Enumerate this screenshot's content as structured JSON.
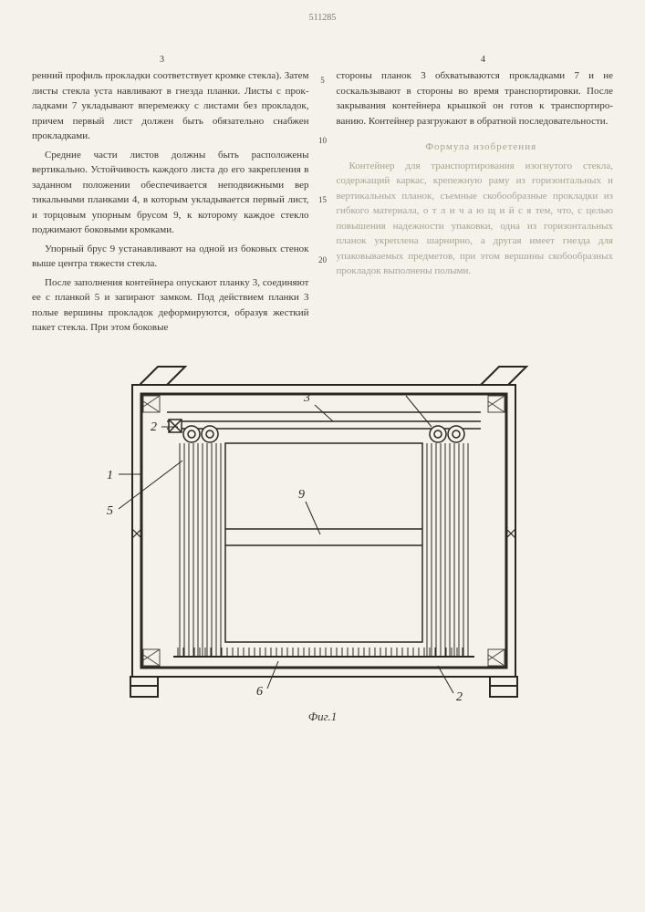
{
  "page_number_top": "511285",
  "col_num_left": "3",
  "col_num_right": "4",
  "line_markers": [
    "5",
    "10",
    "15",
    "20"
  ],
  "left_col": {
    "p1": "ренний профиль прокладки соответствует кромке стекла). Затем листы стекла уста навливают в гнезда планки. Листы с прок­ладками 7 укладывают вперемежку с листа­ми без прокладок, причем первый лист дол­жен быть обязательно снабжен прокладками.",
    "p2": "Средние части листов должны быть рас­положены вертикально. Устойчивость каж­дого листа до его закрепления в заданном положении обеспечивается неподвижными вер тикальными планками 4, в которым укла­дывается первый лист, и торцовым упорным брусом 9, к которому каждое стекло поджи­мают боковыми кромками.",
    "p3": "Упорный брус 9 устанавливают на одной из боковых стенок выше центра тяжести стекла.",
    "p4": "После заполнения контейнера опускают план­ку 3, соединяют ее с планкой 5 и запира­ют замком. Под действием планки 3 полые вершины прокладок деформируются, образуя жесткий пакет стекла. При этом боковые"
  },
  "right_col": {
    "p1": "стороны планок 3 обхватываются прокладка­ми 7 и не соскальзывают в стороны во вре­мя транспортировки. После закрывания кон­тейнера крышкой он готов к транспортиро­ванию. Контейнер разгружают в обратной последовательности.",
    "formula_title": "Формула изобретения",
    "p2": "Контейнер для транспортирования изогну­того стекла, содержащий каркас, крепежную раму из горизонтальных и вертикальных планок, съемные скобообразные прокладки из гибкого материала, о т л и ч а ю щ и й ­с я  тем, что, с целью повышения надежности упаковки, одна из горизонтальных планок укреплена шарнирно, а другая имеет гнезда для упаковываемых предметов, при этом вершины скобообразных прокладок выполне­ны полыми."
  },
  "figure": {
    "caption": "Фиг.1",
    "labels": [
      "1",
      "2",
      "3",
      "5",
      "6",
      "9"
    ],
    "colors": {
      "stroke": "#2a2722",
      "fill_bg": "#f5f2ec",
      "hatch": "#4a463c"
    }
  }
}
